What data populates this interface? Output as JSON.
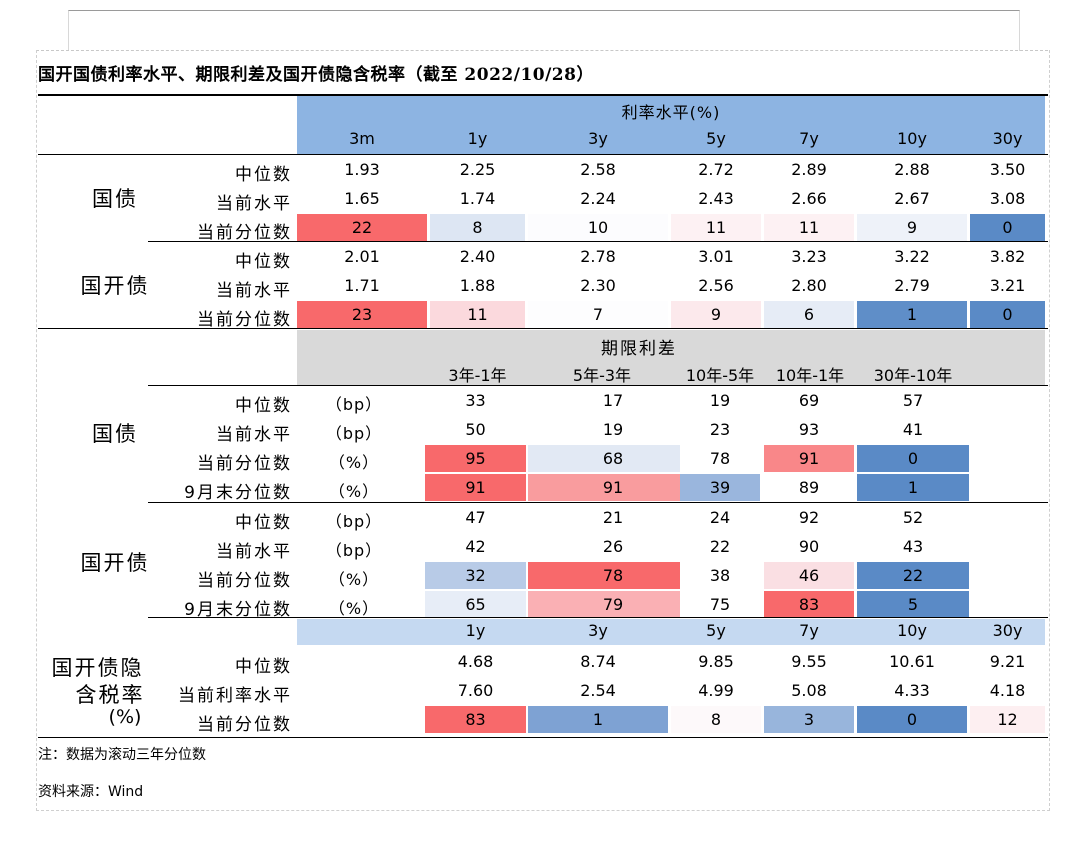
{
  "title": "国开国债利率水平、期限利差及国开债隐含税率（截至 2022/10/28）",
  "colors": {
    "header_blue": "#8db4e2",
    "header_lightblue": "#c5d9f1",
    "header_gray": "#d9d9d9",
    "red_strong": "#f8696b",
    "blue_strong": "#5a8ac6"
  },
  "section1": {
    "header": "利率水平(%)",
    "columns": [
      "3m",
      "1y",
      "3y",
      "5y",
      "7y",
      "10y",
      "30y"
    ],
    "groups": [
      {
        "name": "国债",
        "rows": [
          {
            "label": "中位数",
            "values": [
              "1.93",
              "2.25",
              "2.58",
              "2.72",
              "2.89",
              "2.88",
              "3.50"
            ],
            "colors": [
              null,
              null,
              null,
              null,
              null,
              null,
              null
            ]
          },
          {
            "label": "当前水平",
            "values": [
              "1.65",
              "1.74",
              "2.24",
              "2.43",
              "2.66",
              "2.67",
              "3.08"
            ],
            "colors": [
              null,
              null,
              null,
              null,
              null,
              null,
              null
            ]
          },
          {
            "label": "当前分位数",
            "values": [
              "22",
              "8",
              "10",
              "11",
              "11",
              "9",
              "0"
            ],
            "colors": [
              "#f8696b",
              "#dde6f3",
              "#fcfcfe",
              "#fdf1f3",
              "#fdf1f3",
              "#eef2f9",
              "#5a8ac6"
            ]
          }
        ]
      },
      {
        "name": "国开债",
        "rows": [
          {
            "label": "中位数",
            "values": [
              "2.01",
              "2.40",
              "2.78",
              "3.01",
              "3.23",
              "3.22",
              "3.82"
            ],
            "colors": [
              null,
              null,
              null,
              null,
              null,
              null,
              null
            ]
          },
          {
            "label": "当前水平",
            "values": [
              "1.71",
              "1.88",
              "2.30",
              "2.56",
              "2.80",
              "2.79",
              "3.21"
            ],
            "colors": [
              null,
              null,
              null,
              null,
              null,
              null,
              null
            ]
          },
          {
            "label": "当前分位数",
            "values": [
              "23",
              "11",
              "7",
              "9",
              "6",
              "1",
              "0"
            ],
            "colors": [
              "#f8696b",
              "#fbd9dd",
              "#fdfdfe",
              "#fce9ec",
              "#e6ecf6",
              "#5f8ec8",
              "#5a8ac6"
            ]
          }
        ]
      }
    ]
  },
  "section2": {
    "header": "期限利差",
    "columns": [
      "3年-1年",
      "5年-3年",
      "10年-5年",
      "10年-1年",
      "30年-10年"
    ],
    "groups": [
      {
        "name": "国债",
        "rows": [
          {
            "label": "中位数",
            "unit": "（bp）",
            "values": [
              "33",
              "17",
              "19",
              "69",
              "57"
            ],
            "colors": [
              null,
              null,
              null,
              null,
              null
            ]
          },
          {
            "label": "当前水平",
            "unit": "（bp）",
            "values": [
              "50",
              "19",
              "23",
              "93",
              "41"
            ],
            "colors": [
              null,
              null,
              null,
              null,
              null
            ]
          },
          {
            "label": "当前分位数",
            "unit": "（%）",
            "values": [
              "95",
              "68",
              "78",
              "91",
              "0"
            ],
            "colors": [
              "#f8696b",
              "#e2e9f4",
              "#ffffff",
              "#f98789",
              "#5a8ac6"
            ]
          },
          {
            "label": "9月末分位数",
            "unit": "（%）",
            "values": [
              "91",
              "91",
              "39",
              "89",
              "1"
            ],
            "colors": [
              "#f8696b",
              "#f99c9e",
              "#9ab6dd",
              "#ffffff",
              "#5a8ac6"
            ]
          }
        ]
      },
      {
        "name": "国开债",
        "rows": [
          {
            "label": "中位数",
            "unit": "（bp）",
            "values": [
              "47",
              "21",
              "24",
              "92",
              "52"
            ],
            "colors": [
              null,
              null,
              null,
              null,
              null
            ]
          },
          {
            "label": "当前水平",
            "unit": "（bp）",
            "values": [
              "42",
              "26",
              "22",
              "90",
              "43"
            ],
            "colors": [
              null,
              null,
              null,
              null,
              null
            ]
          },
          {
            "label": "当前分位数",
            "unit": "（%）",
            "values": [
              "32",
              "78",
              "38",
              "46",
              "22"
            ],
            "colors": [
              "#b8cbe7",
              "#f8696b",
              "#ffffff",
              "#fadfe3",
              "#5a8ac6"
            ]
          },
          {
            "label": "9月末分位数",
            "unit": "（%）",
            "values": [
              "65",
              "79",
              "75",
              "83",
              "5"
            ],
            "colors": [
              "#e7edf7",
              "#fab0b4",
              "#ffffff",
              "#f8696b",
              "#5a8ac6"
            ]
          }
        ]
      }
    ]
  },
  "section3": {
    "columns": [
      "1y",
      "3y",
      "5y",
      "7y",
      "10y",
      "30y"
    ],
    "group_lines": [
      "国开债隐",
      "含税率",
      "(%)"
    ],
    "rows": [
      {
        "label": "中位数",
        "values": [
          "4.68",
          "8.74",
          "9.85",
          "9.55",
          "10.61",
          "9.21"
        ],
        "colors": [
          null,
          null,
          null,
          null,
          null,
          null
        ]
      },
      {
        "label": "当前利率水平",
        "values": [
          "7.60",
          "2.54",
          "4.99",
          "5.08",
          "4.33",
          "4.18"
        ],
        "colors": [
          null,
          null,
          null,
          null,
          null,
          null
        ]
      },
      {
        "label": "当前分位数",
        "values": [
          "83",
          "1",
          "8",
          "3",
          "0",
          "12"
        ],
        "colors": [
          "#f8696b",
          "#7ea2d3",
          "#fdf9fa",
          "#98b5dc",
          "#5a8ac6",
          "#fdeff1"
        ]
      }
    ]
  },
  "notes": {
    "note": "注：数据为滚动三年分位数",
    "source": "资料来源：Wind"
  }
}
